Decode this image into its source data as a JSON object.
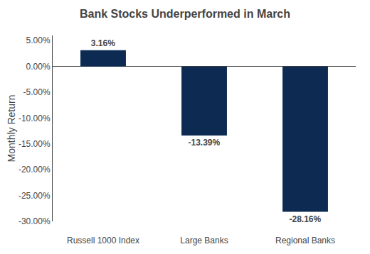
{
  "chart_data": {
    "type": "bar",
    "title": "Bank Stocks Underperformed in March",
    "categories": [
      "Russell 1000 Index",
      "Large Banks",
      "Regional Banks"
    ],
    "values": [
      3.16,
      -13.39,
      -28.16
    ],
    "value_labels": [
      "3.16%",
      "-13.39%",
      "-28.16%"
    ],
    "data_labels": true,
    "color": "#0d2b52",
    "ylabel": "Monthly Return",
    "ylim": [
      -30,
      6
    ],
    "yticks": [
      {
        "value": 5,
        "label": "5.00%"
      },
      {
        "value": 0,
        "label": "0.00%"
      },
      {
        "value": -5,
        "label": "-5.00%"
      },
      {
        "value": -10,
        "label": "-10.00%"
      },
      {
        "value": -15,
        "label": "-15.00%"
      },
      {
        "value": -20,
        "label": "-20.00%"
      },
      {
        "value": -25,
        "label": "-25.00%"
      },
      {
        "value": -30,
        "label": "-30.00%"
      }
    ],
    "grid": false
  }
}
